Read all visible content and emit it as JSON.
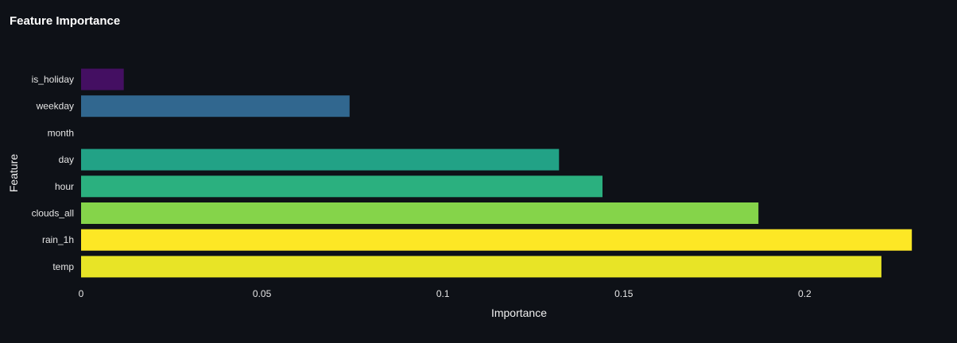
{
  "chart_data": {
    "type": "bar",
    "orientation": "horizontal",
    "title": "Feature Importance",
    "xlabel": "Importance",
    "ylabel": "Feature",
    "categories": [
      "is_holiday",
      "weekday",
      "month",
      "day",
      "hour",
      "clouds_all",
      "rain_1h",
      "temp"
    ],
    "values": [
      0.0118,
      0.0742,
      0.0,
      0.1321,
      0.1441,
      0.1872,
      0.2296,
      0.2212
    ],
    "colors": [
      "#440f62",
      "#31678f",
      "#31678f",
      "#22a286",
      "#2bb07f",
      "#85d44a",
      "#fde725",
      "#e8e426"
    ],
    "xlim": [
      0,
      0.23
    ],
    "xticks": [
      0,
      0.05,
      0.1,
      0.15,
      0.2
    ],
    "xtick_labels": [
      "0",
      "0.05",
      "0.1",
      "0.15",
      "0.2"
    ],
    "grid": false,
    "legend": "none"
  }
}
